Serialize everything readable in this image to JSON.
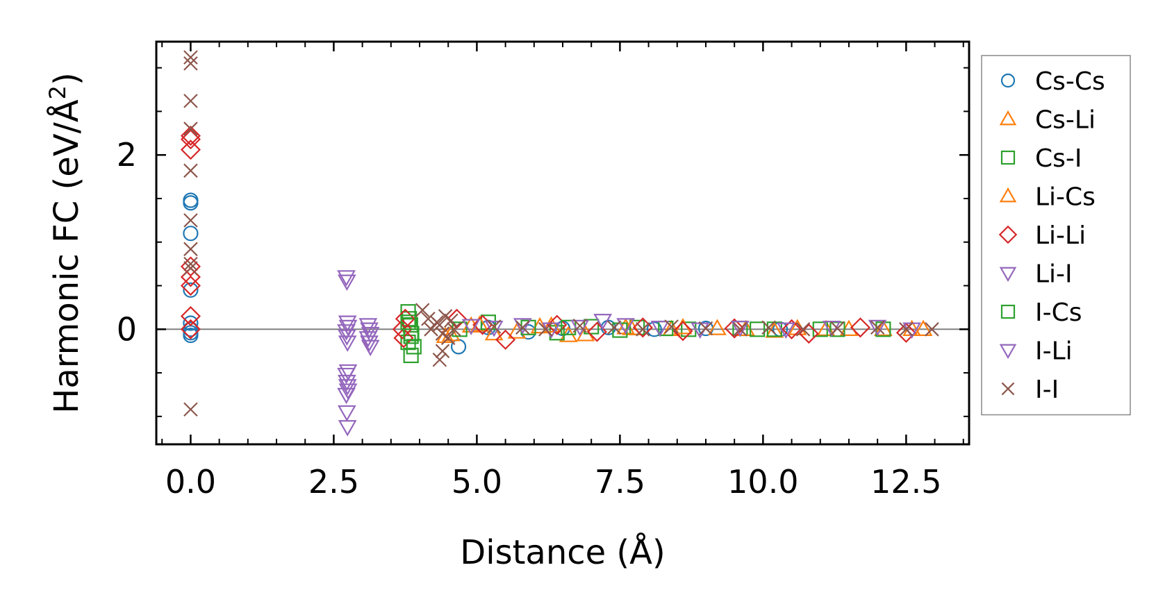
{
  "chart_data": {
    "type": "scatter",
    "title": "",
    "xlabel": "Distance (Å)",
    "ylabel": "Harmonic FC (eV/Å",
    "ylabel_sup": "2",
    "ylabel_close": ")",
    "xlim": [
      -0.6,
      13.6
    ],
    "ylim": [
      -1.32,
      3.3
    ],
    "xticks": [
      0.0,
      2.5,
      5.0,
      7.5,
      10.0,
      12.5
    ],
    "xtick_labels": [
      "0.0",
      "2.5",
      "5.0",
      "7.5",
      "10.0",
      "12.5"
    ],
    "yticks": [
      0,
      2
    ],
    "ytick_labels": [
      "0",
      "2"
    ],
    "zero_line": true,
    "grid": false,
    "legend_position": "outside-right",
    "series": [
      {
        "name": "Cs-Cs",
        "marker": "circle",
        "color": "#1f77b4",
        "x": [
          0.0,
          0.0,
          0.0,
          0.0,
          0.0,
          0.0,
          0.0,
          0.0,
          4.68,
          5.2,
          5.9,
          6.5,
          7.3,
          8.1,
          9.0,
          10.3
        ],
        "y": [
          1.48,
          1.45,
          1.1,
          0.45,
          0.07,
          0.0,
          -0.04,
          -0.07,
          -0.2,
          0.02,
          -0.03,
          0.01,
          0.02,
          0.0,
          0.01,
          0.0
        ]
      },
      {
        "name": "Cs-Li",
        "marker": "triangle-up",
        "color": "#ff7f0e",
        "x": [
          4.45,
          4.9,
          5.3,
          6.1,
          6.6,
          7.6,
          8.4,
          9.2,
          10.2,
          11.1,
          12.1,
          12.8
        ],
        "y": [
          -0.08,
          0.04,
          -0.05,
          0.03,
          -0.07,
          0.02,
          0.0,
          0.01,
          -0.02,
          0.0,
          0.0,
          0.0
        ]
      },
      {
        "name": "Cs-I",
        "marker": "square",
        "color": "#2ca02c",
        "x": [
          3.8,
          3.82,
          3.84,
          3.86,
          3.8,
          3.85,
          5.2,
          6.4,
          7.0,
          7.8,
          8.7,
          9.6,
          10.2,
          11.0,
          12.1
        ],
        "y": [
          0.2,
          0.12,
          0.05,
          -0.05,
          -0.15,
          -0.3,
          0.08,
          -0.04,
          0.03,
          0.02,
          0.0,
          0.01,
          0.0,
          0.0,
          0.0
        ]
      },
      {
        "name": "Li-Cs",
        "marker": "triangle-up",
        "color": "#ff7f0e",
        "x": [
          4.55,
          5.05,
          5.7,
          6.3,
          6.9,
          7.7,
          8.6,
          9.7,
          10.6,
          11.5,
          12.6
        ],
        "y": [
          -0.06,
          0.05,
          -0.03,
          0.04,
          -0.06,
          0.01,
          0.02,
          0.0,
          0.01,
          0.0,
          0.0
        ]
      },
      {
        "name": "Li-Li",
        "marker": "diamond",
        "color": "#d62728",
        "x": [
          0.0,
          0.0,
          0.0,
          0.0,
          0.0,
          0.0,
          0.0,
          0.0,
          3.75,
          3.7,
          3.72,
          4.65,
          5.1,
          5.5,
          6.4,
          7.1,
          7.9,
          8.6,
          9.5,
          10.5,
          10.8,
          11.7,
          12.5
        ],
        "y": [
          2.22,
          2.18,
          2.06,
          0.72,
          0.6,
          0.5,
          0.15,
          0.0,
          0.12,
          0.0,
          -0.1,
          0.12,
          0.05,
          -0.12,
          0.05,
          -0.03,
          0.02,
          -0.02,
          0.01,
          0.0,
          -0.05,
          0.02,
          -0.04
        ]
      },
      {
        "name": "Li-I",
        "marker": "triangle-down",
        "color": "#9467bd",
        "x": [
          2.72,
          2.73,
          2.74,
          2.75,
          2.72,
          2.73,
          2.74,
          2.75,
          2.72,
          2.73,
          2.74,
          2.75,
          2.72,
          2.73,
          2.74,
          3.1,
          3.12,
          3.14,
          3.1,
          3.12,
          3.14
        ],
        "y": [
          0.6,
          0.55,
          0.08,
          0.03,
          -0.02,
          -0.08,
          -0.15,
          -0.48,
          -0.52,
          -0.6,
          -0.65,
          -0.7,
          -0.75,
          -0.95,
          -1.12,
          0.05,
          0.0,
          -0.05,
          -0.1,
          -0.15,
          -0.2
        ]
      },
      {
        "name": "I-Cs",
        "marker": "square",
        "color": "#2ca02c",
        "x": [
          3.8,
          3.85,
          3.9,
          4.7,
          5.9,
          6.6,
          7.5,
          8.3,
          9.9,
          11.3
        ],
        "y": [
          0.08,
          -0.08,
          -0.2,
          0.0,
          0.02,
          0.02,
          -0.01,
          0.01,
          0.0,
          0.0
        ]
      },
      {
        "name": "I-Li",
        "marker": "triangle-down",
        "color": "#9467bd",
        "x": [
          4.9,
          5.3,
          5.8,
          6.3,
          6.8,
          7.2,
          7.6,
          8.2,
          8.9,
          9.6,
          10.4,
          11.2,
          12.0,
          12.6
        ],
        "y": [
          0.04,
          0.02,
          0.05,
          0.0,
          0.03,
          0.1,
          0.05,
          0.02,
          0.0,
          0.02,
          0.0,
          0.02,
          0.03,
          0.0
        ]
      },
      {
        "name": "I-I",
        "marker": "x",
        "color": "#8c564b",
        "x": [
          0.0,
          0.0,
          0.0,
          0.0,
          0.0,
          0.0,
          0.0,
          0.0,
          0.0,
          0.0,
          4.05,
          4.15,
          4.2,
          4.3,
          4.35,
          4.4,
          4.45,
          4.5,
          4.55,
          4.6,
          4.4,
          4.35,
          5.3,
          5.8,
          6.2,
          6.8,
          7.4,
          7.9,
          8.4,
          9.0,
          9.6,
          10.1,
          10.7,
          11.3,
          12.0,
          12.5,
          12.95
        ],
        "y": [
          3.12,
          3.05,
          2.62,
          2.3,
          1.82,
          1.25,
          0.92,
          0.75,
          0.7,
          -0.92,
          0.22,
          0.12,
          0.0,
          0.08,
          0.05,
          -0.05,
          0.15,
          -0.1,
          0.1,
          0.0,
          -0.25,
          -0.35,
          0.03,
          0.02,
          0.0,
          0.04,
          0.02,
          0.0,
          0.03,
          0.01,
          0.0,
          0.02,
          0.0,
          0.01,
          0.02,
          0.0,
          0.0
        ]
      }
    ]
  }
}
